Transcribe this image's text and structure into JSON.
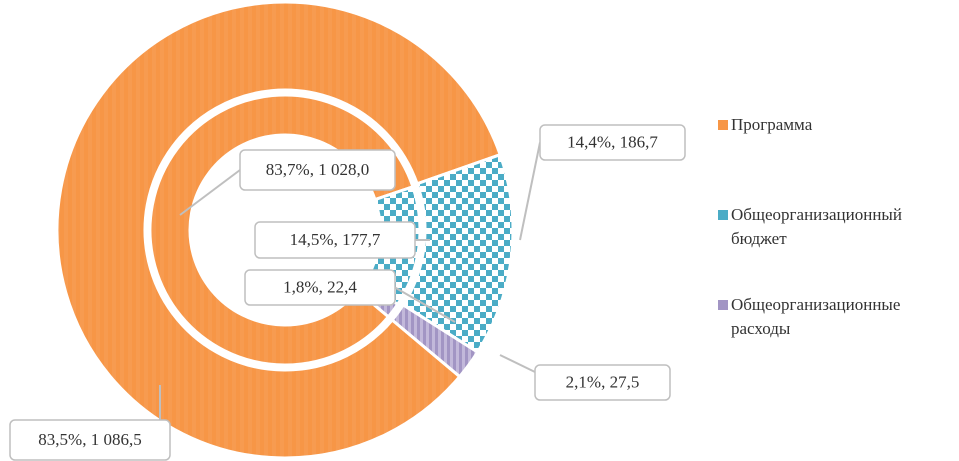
{
  "chart_data": {
    "type": "donut",
    "categories": [
      "Программа",
      "Общеорганизационный бюджет",
      "Общеорганизационные расходы"
    ],
    "colors": [
      "#f79646",
      "#4bacc6",
      "#a295c4"
    ],
    "series": [
      {
        "values": [
          1028.0,
          177.7,
          22.4
        ],
        "value_labels": [
          "83,7%, 1 028,0",
          "14,5%, 177,7",
          "1,8%, 22,4"
        ]
      },
      {
        "values": [
          1086.5,
          186.7,
          27.5
        ],
        "value_labels": [
          "83,5%, 1 086,5",
          "14,4%, 186,7",
          "2,1%, 27,5"
        ]
      }
    ],
    "legend": "right"
  }
}
